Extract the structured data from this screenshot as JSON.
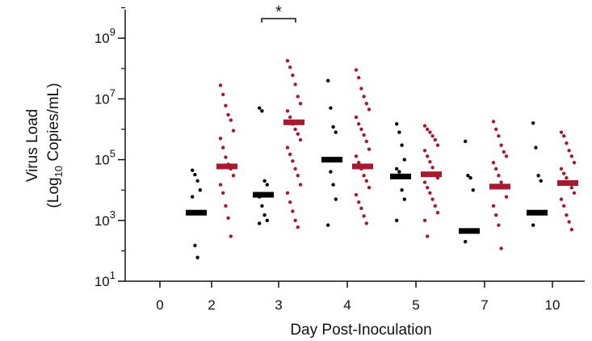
{
  "chart_data": {
    "type": "scatter",
    "xlabel": "Day Post-Inoculation",
    "ylabel_line1": "Virus Load",
    "ylabel_line2_prefix": "(Log",
    "ylabel_line2_sub": "10",
    "ylabel_line2_suffix": " Copies/mL)",
    "y_scale": "log",
    "ylim": [
      10,
      100000000000
    ],
    "y_ticks": [
      {
        "base": "10",
        "exp": "1",
        "value": 10
      },
      {
        "base": "10",
        "exp": "3",
        "value": 1000
      },
      {
        "base": "10",
        "exp": "5",
        "value": 100000
      },
      {
        "base": "10",
        "exp": "7",
        "value": 10000000
      },
      {
        "base": "10",
        "exp": "9",
        "value": 1000000000
      }
    ],
    "categories": [
      "0",
      "2",
      "3",
      "4",
      "5",
      "7",
      "10"
    ],
    "annotations": [
      {
        "text": "*",
        "between_day": "3"
      }
    ],
    "series": [
      {
        "color": "#000000",
        "medians": {
          "2": 1800,
          "3": 7000,
          "4": 100000,
          "5": 28000,
          "7": 450,
          "10": 1800
        },
        "points": {
          "2": [
            45000,
            32000,
            20000,
            10000,
            6000,
            150,
            60
          ],
          "3": [
            5000000,
            4000000,
            20000,
            15000,
            6000,
            3000,
            1500,
            1000,
            800
          ],
          "4": [
            40000000,
            5000000,
            1200000,
            800000,
            100000,
            40000,
            15000,
            5000,
            700
          ],
          "5": [
            1500000,
            800000,
            300000,
            100000,
            50000,
            40000,
            10000,
            5000,
            1000
          ],
          "7": [
            400000,
            30000,
            25000,
            10000,
            200
          ],
          "10": [
            1600000,
            250000,
            30000,
            20000,
            700
          ]
        }
      },
      {
        "color": "#a6192e",
        "medians": {
          "2": 60000,
          "3": 1700000,
          "4": 60000,
          "5": 33000,
          "7": 13000,
          "10": 17000
        },
        "points": {
          "2": [
            28000000,
            14000000,
            6000000,
            3000000,
            2000000,
            900000,
            500000,
            250000,
            120000,
            70000,
            50000,
            30000,
            15000,
            8000,
            3000,
            1200,
            300
          ],
          "3": [
            180000000,
            110000000,
            60000000,
            30000000,
            12000000,
            7000000,
            4000000,
            2500000,
            1500000,
            1000000,
            700000,
            450000,
            250000,
            150000,
            90000,
            50000,
            30000,
            15000,
            8000,
            4000,
            2000,
            1000,
            600
          ],
          "4": [
            90000000,
            50000000,
            22000000,
            12000000,
            7000000,
            4500000,
            2500000,
            1500000,
            1000000,
            650000,
            400000,
            220000,
            130000,
            80000,
            50000,
            30000,
            20000,
            12000,
            7000,
            4000,
            2500,
            1400,
            800
          ],
          "5": [
            1300000,
            1000000,
            800000,
            600000,
            450000,
            300000,
            200000,
            130000,
            85000,
            55000,
            35000,
            25000,
            18000,
            12000,
            8000,
            5000,
            3000,
            1800,
            1000,
            300
          ],
          "7": [
            1800000,
            1000000,
            600000,
            300000,
            180000,
            130000,
            80000,
            50000,
            30000,
            18000,
            12000,
            6000,
            3000,
            1500,
            700,
            120
          ],
          "10": [
            800000,
            600000,
            350000,
            200000,
            130000,
            80000,
            50000,
            35000,
            25000,
            17000,
            12000,
            8000,
            5000,
            3000,
            1500,
            900,
            500
          ]
        }
      }
    ]
  }
}
